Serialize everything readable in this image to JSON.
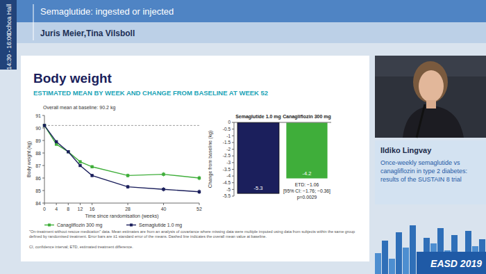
{
  "header": {
    "hall": "Ochoa Hall",
    "time": "14:30 - 16:00",
    "session": "Semaglutide: ingested or injected",
    "chairs": "Juris Meier,Tina Vilsboll"
  },
  "slide": {
    "title": "Body weight",
    "subtitle": "ESTIMATED MEAN BY WEEK AND CHANGE FROM BASELINE AT WEEK 52",
    "baseline_note": "Overall mean at baseline: 90.2 kg",
    "footnote": "\"On-treatment without rescue medication\" data. Mean estimates are from an analysis of covariance where missing data were multiple imputed using data from subjects within the same group defined by randomised treatment. Error bars are ±1 standard error of the means. Dashed line indicates the overall mean value at baseline.",
    "abbreviations": "CI, confidence interval; ETD, estimated treatment difference."
  },
  "speaker": {
    "name": "Ildiko Lingvay",
    "talk": "Once-weekly semaglutide vs canagliflozin in type 2 diabetes: results of the SUSTAIN 8 trial"
  },
  "event": "EASD 2019",
  "chart_data": [
    {
      "type": "line",
      "x_label": "Time since randomisation (weeks)",
      "y_label": "Body weight (kg)",
      "x": [
        0,
        4,
        8,
        12,
        16,
        28,
        40,
        52
      ],
      "xlim": [
        0,
        52
      ],
      "xticks": [
        0,
        4,
        8,
        12,
        16,
        28,
        40,
        52
      ],
      "ylim": [
        84,
        91
      ],
      "yticks": [
        84,
        85,
        86,
        87,
        88,
        89,
        90,
        91
      ],
      "baseline": 90.2,
      "legend": "bottom",
      "grid": false,
      "series": [
        {
          "name": "Canagliflozin 300 mg",
          "color": "#3fae3a",
          "marker": "square",
          "values": [
            90.2,
            88.7,
            88.1,
            87.3,
            86.9,
            86.2,
            86.3,
            86.0
          ],
          "errors": [
            0,
            0.1,
            0.1,
            0.1,
            0.12,
            0.15,
            0.17,
            0.18
          ]
        },
        {
          "name": "Semaglutide 1.0 mg",
          "color": "#1b1f5c",
          "marker": "square",
          "values": [
            90.2,
            88.9,
            88.1,
            87.0,
            86.2,
            85.3,
            85.1,
            84.9
          ],
          "errors": [
            0,
            0.1,
            0.1,
            0.1,
            0.12,
            0.15,
            0.17,
            0.18
          ]
        }
      ]
    },
    {
      "type": "bar",
      "y_label": "Change from baseline (kg)",
      "categories": [
        "Semaglutide 1.0 mg",
        "Canagliflozin 300 mg"
      ],
      "values": [
        -5.3,
        -4.2
      ],
      "colors": [
        "#1b1f5c",
        "#3fae3a"
      ],
      "ylim": [
        -5.5,
        0
      ],
      "yticks": [
        0,
        -0.5,
        -1,
        -1.5,
        -2,
        -2.5,
        -3,
        -3.5,
        -4,
        -4.5,
        -5,
        -5.5
      ],
      "data_labels": true,
      "annotations": [
        "ETD: −1.06",
        "[95% CI: −1.76; −0.36]",
        "p=0.0029"
      ]
    }
  ]
}
